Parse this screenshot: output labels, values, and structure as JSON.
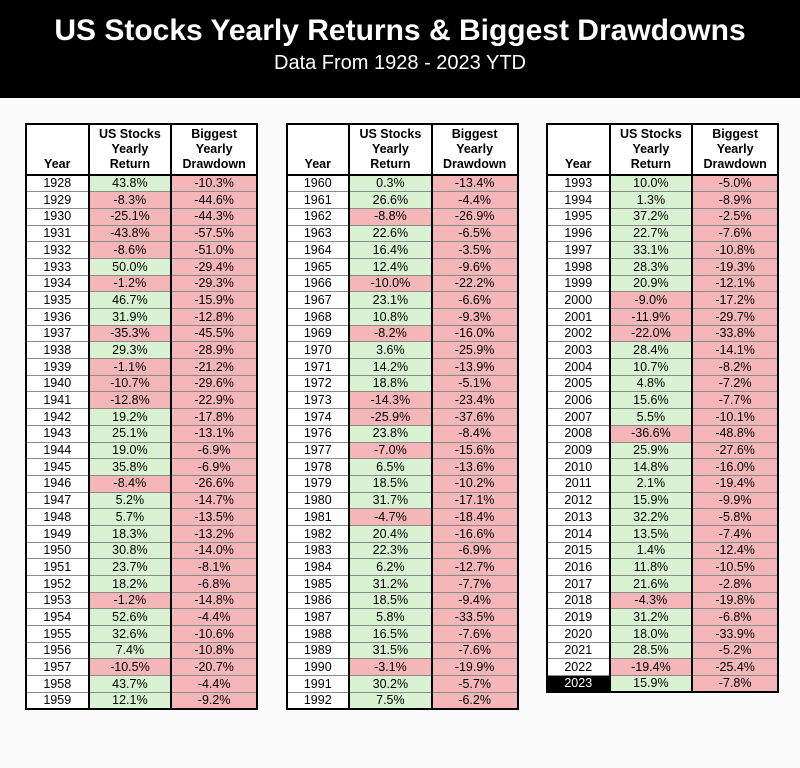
{
  "chart_data": {
    "type": "table",
    "title": "US Stocks Yearly Returns & Biggest Drawdowns",
    "subtitle": "Data From 1928 - 2023 YTD",
    "column_headers": [
      {
        "key": "year",
        "lines": [
          "Year"
        ]
      },
      {
        "key": "return",
        "lines": [
          "US Stocks",
          "Yearly",
          "Return"
        ]
      },
      {
        "key": "drawdown",
        "lines": [
          "Biggest",
          "Yearly",
          "Drawdown"
        ]
      }
    ],
    "highlighted_year": "2023",
    "colors": {
      "positive_return_bg": "#d9f2d2",
      "negative_bg": "#f4b6b8",
      "year_bg": "#ffffff",
      "highlight_year_bg": "#000000",
      "highlight_year_fg": "#ffffff",
      "banner_bg": "#000000",
      "banner_fg": "#ffffff"
    },
    "tables": [
      {
        "rows": [
          [
            "1928",
            "43.8%",
            "-10.3%"
          ],
          [
            "1929",
            "-8.3%",
            "-44.6%"
          ],
          [
            "1930",
            "-25.1%",
            "-44.3%"
          ],
          [
            "1931",
            "-43.8%",
            "-57.5%"
          ],
          [
            "1932",
            "-8.6%",
            "-51.0%"
          ],
          [
            "1933",
            "50.0%",
            "-29.4%"
          ],
          [
            "1934",
            "-1.2%",
            "-29.3%"
          ],
          [
            "1935",
            "46.7%",
            "-15.9%"
          ],
          [
            "1936",
            "31.9%",
            "-12.8%"
          ],
          [
            "1937",
            "-35.3%",
            "-45.5%"
          ],
          [
            "1938",
            "29.3%",
            "-28.9%"
          ],
          [
            "1939",
            "-1.1%",
            "-21.2%"
          ],
          [
            "1940",
            "-10.7%",
            "-29.6%"
          ],
          [
            "1941",
            "-12.8%",
            "-22.9%"
          ],
          [
            "1942",
            "19.2%",
            "-17.8%"
          ],
          [
            "1943",
            "25.1%",
            "-13.1%"
          ],
          [
            "1944",
            "19.0%",
            "-6.9%"
          ],
          [
            "1945",
            "35.8%",
            "-6.9%"
          ],
          [
            "1946",
            "-8.4%",
            "-26.6%"
          ],
          [
            "1947",
            "5.2%",
            "-14.7%"
          ],
          [
            "1948",
            "5.7%",
            "-13.5%"
          ],
          [
            "1949",
            "18.3%",
            "-13.2%"
          ],
          [
            "1950",
            "30.8%",
            "-14.0%"
          ],
          [
            "1951",
            "23.7%",
            "-8.1%"
          ],
          [
            "1952",
            "18.2%",
            "-6.8%"
          ],
          [
            "1953",
            "-1.2%",
            "-14.8%"
          ],
          [
            "1954",
            "52.6%",
            "-4.4%"
          ],
          [
            "1955",
            "32.6%",
            "-10.6%"
          ],
          [
            "1956",
            "7.4%",
            "-10.8%"
          ],
          [
            "1957",
            "-10.5%",
            "-20.7%"
          ],
          [
            "1958",
            "43.7%",
            "-4.4%"
          ],
          [
            "1959",
            "12.1%",
            "-9.2%"
          ]
        ]
      },
      {
        "rows": [
          [
            "1960",
            "0.3%",
            "-13.4%"
          ],
          [
            "1961",
            "26.6%",
            "-4.4%"
          ],
          [
            "1962",
            "-8.8%",
            "-26.9%"
          ],
          [
            "1963",
            "22.6%",
            "-6.5%"
          ],
          [
            "1964",
            "16.4%",
            "-3.5%"
          ],
          [
            "1965",
            "12.4%",
            "-9.6%"
          ],
          [
            "1966",
            "-10.0%",
            "-22.2%"
          ],
          [
            "1967",
            "23.1%",
            "-6.6%"
          ],
          [
            "1968",
            "10.8%",
            "-9.3%"
          ],
          [
            "1969",
            "-8.2%",
            "-16.0%"
          ],
          [
            "1970",
            "3.6%",
            "-25.9%"
          ],
          [
            "1971",
            "14.2%",
            "-13.9%"
          ],
          [
            "1972",
            "18.8%",
            "-5.1%"
          ],
          [
            "1973",
            "-14.3%",
            "-23.4%"
          ],
          [
            "1974",
            "-25.9%",
            "-37.6%"
          ],
          [
            "1976",
            "23.8%",
            "-8.4%"
          ],
          [
            "1977",
            "-7.0%",
            "-15.6%"
          ],
          [
            "1978",
            "6.5%",
            "-13.6%"
          ],
          [
            "1979",
            "18.5%",
            "-10.2%"
          ],
          [
            "1980",
            "31.7%",
            "-17.1%"
          ],
          [
            "1981",
            "-4.7%",
            "-18.4%"
          ],
          [
            "1982",
            "20.4%",
            "-16.6%"
          ],
          [
            "1983",
            "22.3%",
            "-6.9%"
          ],
          [
            "1984",
            "6.2%",
            "-12.7%"
          ],
          [
            "1985",
            "31.2%",
            "-7.7%"
          ],
          [
            "1986",
            "18.5%",
            "-9.4%"
          ],
          [
            "1987",
            "5.8%",
            "-33.5%"
          ],
          [
            "1988",
            "16.5%",
            "-7.6%"
          ],
          [
            "1989",
            "31.5%",
            "-7.6%"
          ],
          [
            "1990",
            "-3.1%",
            "-19.9%"
          ],
          [
            "1991",
            "30.2%",
            "-5.7%"
          ],
          [
            "1992",
            "7.5%",
            "-6.2%"
          ]
        ]
      },
      {
        "rows": [
          [
            "1993",
            "10.0%",
            "-5.0%"
          ],
          [
            "1994",
            "1.3%",
            "-8.9%"
          ],
          [
            "1995",
            "37.2%",
            "-2.5%"
          ],
          [
            "1996",
            "22.7%",
            "-7.6%"
          ],
          [
            "1997",
            "33.1%",
            "-10.8%"
          ],
          [
            "1998",
            "28.3%",
            "-19.3%"
          ],
          [
            "1999",
            "20.9%",
            "-12.1%"
          ],
          [
            "2000",
            "-9.0%",
            "-17.2%"
          ],
          [
            "2001",
            "-11.9%",
            "-29.7%"
          ],
          [
            "2002",
            "-22.0%",
            "-33.8%"
          ],
          [
            "2003",
            "28.4%",
            "-14.1%"
          ],
          [
            "2004",
            "10.7%",
            "-8.2%"
          ],
          [
            "2005",
            "4.8%",
            "-7.2%"
          ],
          [
            "2006",
            "15.6%",
            "-7.7%"
          ],
          [
            "2007",
            "5.5%",
            "-10.1%"
          ],
          [
            "2008",
            "-36.6%",
            "-48.8%"
          ],
          [
            "2009",
            "25.9%",
            "-27.6%"
          ],
          [
            "2010",
            "14.8%",
            "-16.0%"
          ],
          [
            "2011",
            "2.1%",
            "-19.4%"
          ],
          [
            "2012",
            "15.9%",
            "-9.9%"
          ],
          [
            "2013",
            "32.2%",
            "-5.8%"
          ],
          [
            "2014",
            "13.5%",
            "-7.4%"
          ],
          [
            "2015",
            "1.4%",
            "-12.4%"
          ],
          [
            "2016",
            "11.8%",
            "-10.5%"
          ],
          [
            "2017",
            "21.6%",
            "-2.8%"
          ],
          [
            "2018",
            "-4.3%",
            "-19.8%"
          ],
          [
            "2019",
            "31.2%",
            "-6.8%"
          ],
          [
            "2020",
            "18.0%",
            "-33.9%"
          ],
          [
            "2021",
            "28.5%",
            "-5.2%"
          ],
          [
            "2022",
            "-19.4%",
            "-25.4%"
          ],
          [
            "2023",
            "15.9%",
            "-7.8%"
          ]
        ]
      }
    ]
  }
}
